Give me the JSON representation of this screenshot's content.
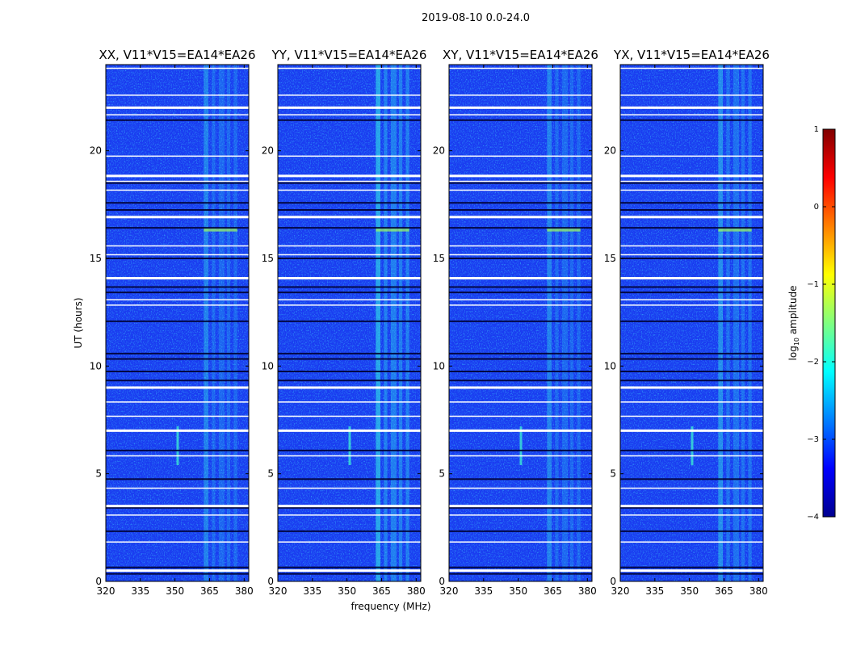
{
  "figure": {
    "suptitle": "2019-08-10 0.0-24.0",
    "ylabel": "UT (hours)",
    "xlabel": "frequency (MHz)"
  },
  "chart_data": [
    {
      "type": "heatmap",
      "title": "XX, V11*V15=EA14*EA26",
      "xlim": [
        320,
        382
      ],
      "ylim": [
        0,
        24
      ],
      "xticks": [
        320,
        335,
        350,
        365,
        380
      ],
      "yticks": [
        0,
        5,
        10,
        15,
        20
      ],
      "ylabel": "UT (hours)"
    },
    {
      "type": "heatmap",
      "title": "YY, V11*V15=EA14*EA26",
      "xlim": [
        320,
        382
      ],
      "ylim": [
        0,
        24
      ],
      "xticks": [
        320,
        335,
        350,
        365,
        380
      ],
      "yticks": [
        0,
        5,
        10,
        15,
        20
      ],
      "xlabel": "frequency (MHz)"
    },
    {
      "type": "heatmap",
      "title": "XY, V11*V15=EA14*EA26",
      "xlim": [
        320,
        382
      ],
      "ylim": [
        0,
        24
      ],
      "xticks": [
        320,
        335,
        350,
        365,
        380
      ],
      "yticks": [
        0,
        5,
        10,
        15,
        20
      ]
    },
    {
      "type": "heatmap",
      "title": "YX, V11*V15=EA14*EA26",
      "xlim": [
        320,
        382
      ],
      "ylim": [
        0,
        24
      ],
      "xticks": [
        320,
        335,
        350,
        365,
        380
      ],
      "yticks": [
        0,
        5,
        10,
        15,
        20
      ]
    }
  ],
  "colorbar": {
    "label_prefix": "log",
    "label_sub": "10",
    "label_suffix": " amplitude",
    "range": [
      -4,
      1
    ],
    "ticks": [
      1,
      0,
      -1,
      -2,
      -3,
      -4
    ],
    "tick_labels": [
      "1",
      "0",
      "−1",
      "−2",
      "−3",
      "−4"
    ],
    "colormap": "jet"
  },
  "data_features": {
    "flagged_rows_white_UT": [
      0.5,
      1.83,
      3.08,
      3.5,
      4.33,
      5.83,
      7.0,
      7.67,
      8.33,
      9.0,
      12.83,
      13.08,
      14.08,
      15.17,
      15.58,
      16.92,
      18.17,
      18.58,
      18.83,
      19.75,
      21.67,
      22.0,
      22.58,
      23.83
    ],
    "dark_rows_UT": [
      0.35,
      0.65,
      2.33,
      3.42,
      4.75,
      6.08,
      9.33,
      9.75,
      10.33,
      10.58,
      12.08,
      13.42,
      13.67,
      15.0,
      16.42,
      17.25,
      17.58,
      18.5,
      21.42
    ],
    "rfi_bands_MHz": [
      [
        362.5,
        364.5
      ],
      [
        366,
        367.5
      ],
      [
        369,
        371.5
      ],
      [
        372.5,
        374
      ],
      [
        375.5,
        377
      ]
    ],
    "transient_channel_MHz": 351.0
  }
}
